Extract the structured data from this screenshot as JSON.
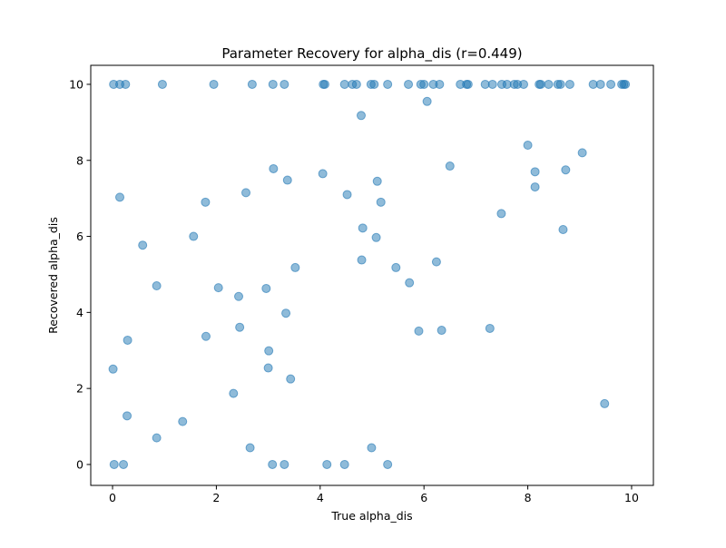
{
  "chart_data": {
    "type": "scatter",
    "title": "Parameter Recovery for alpha_dis (r=0.449)",
    "xlabel": "True alpha_dis",
    "ylabel": "Recovered alpha_dis",
    "xlim": [
      -0.42,
      10.42
    ],
    "ylim": [
      -0.55,
      10.5
    ],
    "xticks": [
      0,
      2,
      4,
      6,
      8,
      10
    ],
    "yticks": [
      0,
      2,
      4,
      6,
      8,
      10
    ],
    "grid": false,
    "legend": "none",
    "marker_color": "#1f77b4",
    "marker_alpha": 0.5,
    "points": [
      [
        0.02,
        10
      ],
      [
        0.14,
        10
      ],
      [
        0.25,
        10
      ],
      [
        0.96,
        10
      ],
      [
        1.95,
        10
      ],
      [
        2.69,
        10
      ],
      [
        3.09,
        10
      ],
      [
        3.31,
        10
      ],
      [
        4.06,
        10
      ],
      [
        4.09,
        10
      ],
      [
        4.47,
        10
      ],
      [
        4.62,
        10
      ],
      [
        4.7,
        10
      ],
      [
        4.98,
        10
      ],
      [
        5.04,
        10
      ],
      [
        5.3,
        10
      ],
      [
        5.7,
        10
      ],
      [
        5.94,
        10
      ],
      [
        6.0,
        10
      ],
      [
        6.18,
        10
      ],
      [
        6.3,
        10
      ],
      [
        6.7,
        10
      ],
      [
        6.82,
        10
      ],
      [
        6.85,
        10
      ],
      [
        7.18,
        10
      ],
      [
        7.32,
        10
      ],
      [
        7.5,
        10
      ],
      [
        7.6,
        10
      ],
      [
        7.74,
        10
      ],
      [
        7.8,
        10
      ],
      [
        7.92,
        10
      ],
      [
        8.22,
        10
      ],
      [
        8.25,
        10
      ],
      [
        8.4,
        10
      ],
      [
        8.58,
        10
      ],
      [
        8.63,
        10
      ],
      [
        8.81,
        10
      ],
      [
        9.26,
        10
      ],
      [
        9.4,
        10
      ],
      [
        9.6,
        10
      ],
      [
        9.81,
        10
      ],
      [
        9.85,
        10
      ],
      [
        9.88,
        10
      ],
      [
        4.79,
        9.18
      ],
      [
        6.06,
        9.55
      ],
      [
        8.0,
        8.4
      ],
      [
        9.05,
        8.2
      ],
      [
        6.5,
        7.85
      ],
      [
        3.1,
        7.78
      ],
      [
        8.14,
        7.7
      ],
      [
        8.73,
        7.75
      ],
      [
        4.05,
        7.65
      ],
      [
        3.37,
        7.48
      ],
      [
        5.1,
        7.45
      ],
      [
        8.14,
        7.3
      ],
      [
        0.14,
        7.03
      ],
      [
        2.57,
        7.15
      ],
      [
        4.52,
        7.1
      ],
      [
        1.79,
        6.9
      ],
      [
        5.17,
        6.9
      ],
      [
        7.49,
        6.6
      ],
      [
        4.82,
        6.22
      ],
      [
        8.68,
        6.18
      ],
      [
        1.56,
        6.0
      ],
      [
        5.08,
        5.97
      ],
      [
        0.58,
        5.77
      ],
      [
        6.24,
        5.33
      ],
      [
        4.8,
        5.38
      ],
      [
        5.46,
        5.18
      ],
      [
        3.52,
        5.18
      ],
      [
        5.72,
        4.78
      ],
      [
        0.85,
        4.7
      ],
      [
        2.04,
        4.65
      ],
      [
        2.96,
        4.63
      ],
      [
        2.43,
        4.42
      ],
      [
        3.34,
        3.98
      ],
      [
        2.45,
        3.61
      ],
      [
        7.27,
        3.58
      ],
      [
        5.9,
        3.51
      ],
      [
        6.34,
        3.53
      ],
      [
        1.8,
        3.37
      ],
      [
        0.29,
        3.27
      ],
      [
        3.01,
        2.99
      ],
      [
        3.0,
        2.54
      ],
      [
        0.01,
        2.51
      ],
      [
        3.43,
        2.25
      ],
      [
        2.33,
        1.87
      ],
      [
        9.48,
        1.6
      ],
      [
        0.28,
        1.28
      ],
      [
        1.35,
        1.13
      ],
      [
        0.85,
        0.7
      ],
      [
        2.65,
        0.44
      ],
      [
        4.99,
        0.44
      ],
      [
        0.03,
        0.0
      ],
      [
        0.21,
        0.0
      ],
      [
        3.08,
        0.0
      ],
      [
        3.31,
        0.0
      ],
      [
        4.13,
        0.0
      ],
      [
        4.47,
        0.0
      ],
      [
        5.3,
        0.0
      ]
    ]
  }
}
